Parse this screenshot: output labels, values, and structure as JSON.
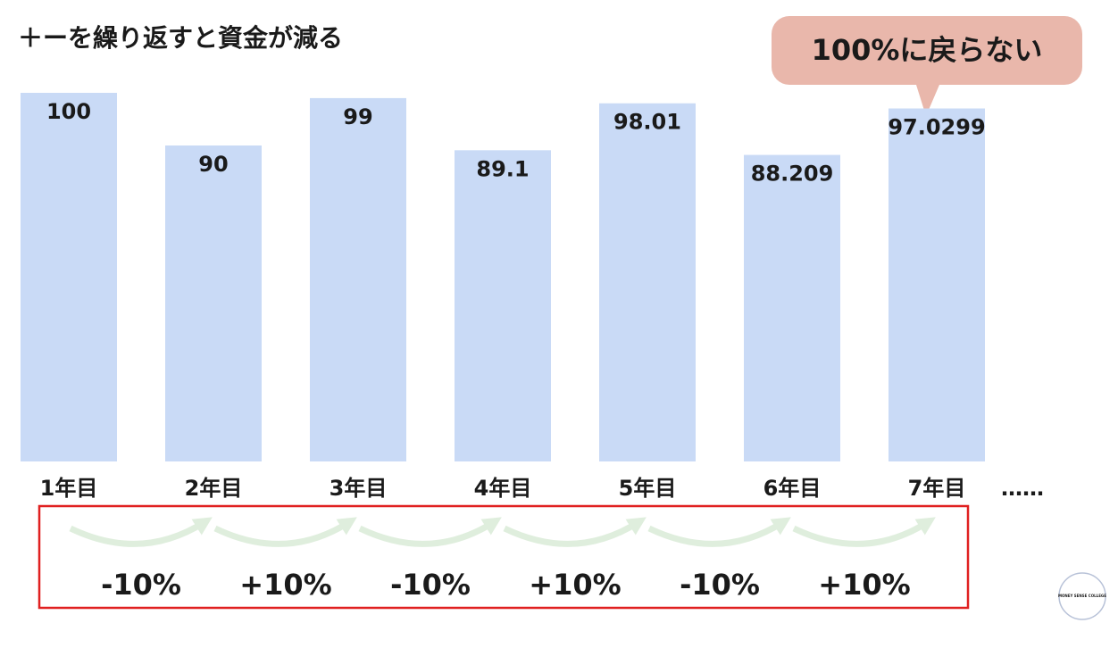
{
  "chart_data": {
    "type": "bar",
    "title": "＋ーを繰り返すと資金が減る",
    "categories": [
      "1年目",
      "2年目",
      "3年目",
      "4年目",
      "5年目",
      "6年目",
      "7年目"
    ],
    "values": [
      100,
      90,
      99,
      89.1,
      98.01,
      88.209,
      97.0299
    ],
    "color": "#c9daf6",
    "ylim": [
      30,
      100
    ],
    "continuation": "……",
    "callout": "100%に戻らない",
    "changes": [
      "-10%",
      "+10%",
      "-10%",
      "+10%",
      "-10%",
      "+10%"
    ],
    "logo": "MONEY SENSE COLLEGE"
  }
}
